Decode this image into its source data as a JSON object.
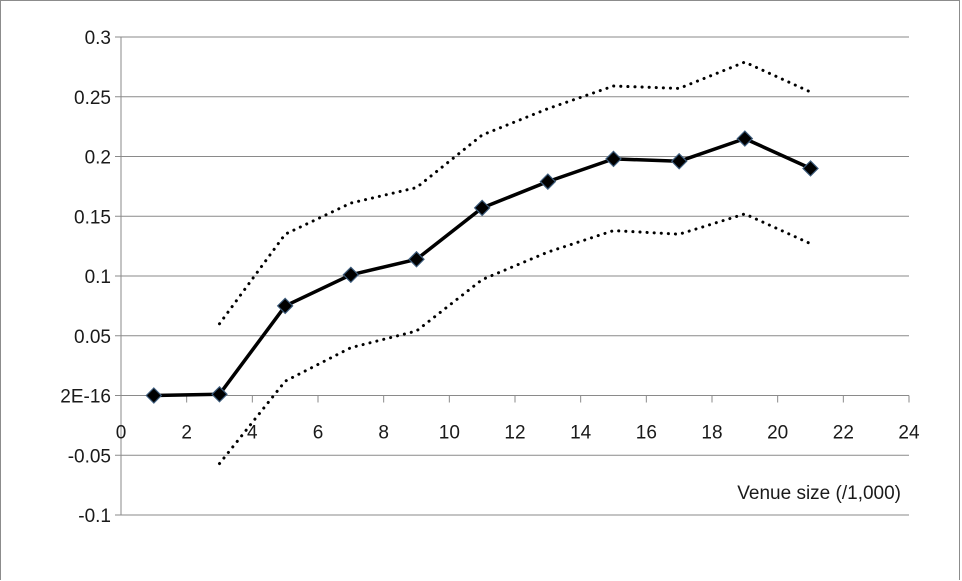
{
  "chart_data": {
    "type": "line",
    "title": "",
    "xlabel": "Venue size (/1,000)",
    "ylabel": "",
    "xlim": [
      0,
      24
    ],
    "ylim": [
      -0.1,
      0.3
    ],
    "x_ticks": [
      0,
      2,
      4,
      6,
      8,
      10,
      12,
      14,
      16,
      18,
      20,
      22,
      24
    ],
    "x_tick_labels": [
      "0",
      "2",
      "4",
      "6",
      "8",
      "10",
      "12",
      "14",
      "16",
      "18",
      "20",
      "22",
      "24"
    ],
    "y_ticks": [
      -0.1,
      -0.05,
      0,
      0.05,
      0.1,
      0.15,
      0.2,
      0.25,
      0.3
    ],
    "y_tick_labels": [
      "-0.1",
      "-0.05",
      "2E-16",
      "0.05",
      "0.1",
      "0.15",
      "0.2",
      "0.25",
      "0.3"
    ],
    "grid": "horizontal",
    "legend": "none",
    "series": [
      {
        "style": "solid-with-diamond-markers",
        "color": "#000000",
        "x": [
          1,
          3,
          5,
          7,
          9,
          11,
          13,
          15,
          17,
          19,
          21
        ],
        "values": [
          0.0,
          0.001,
          0.075,
          0.101,
          0.114,
          0.157,
          0.179,
          0.198,
          0.196,
          0.215,
          0.19
        ]
      },
      {
        "style": "dotted-upper",
        "color": "#000000",
        "x": [
          3,
          5,
          7,
          9,
          11,
          13,
          15,
          17,
          19,
          21
        ],
        "values": [
          0.06,
          0.135,
          0.161,
          0.174,
          0.218,
          0.24,
          0.259,
          0.257,
          0.279,
          0.254
        ]
      },
      {
        "style": "dotted-lower",
        "color": "#000000",
        "x": [
          3,
          5,
          7,
          9,
          11,
          13,
          15,
          17,
          19,
          21
        ],
        "values": [
          -0.057,
          0.012,
          0.04,
          0.054,
          0.097,
          0.12,
          0.138,
          0.135,
          0.152,
          0.127
        ]
      }
    ]
  }
}
